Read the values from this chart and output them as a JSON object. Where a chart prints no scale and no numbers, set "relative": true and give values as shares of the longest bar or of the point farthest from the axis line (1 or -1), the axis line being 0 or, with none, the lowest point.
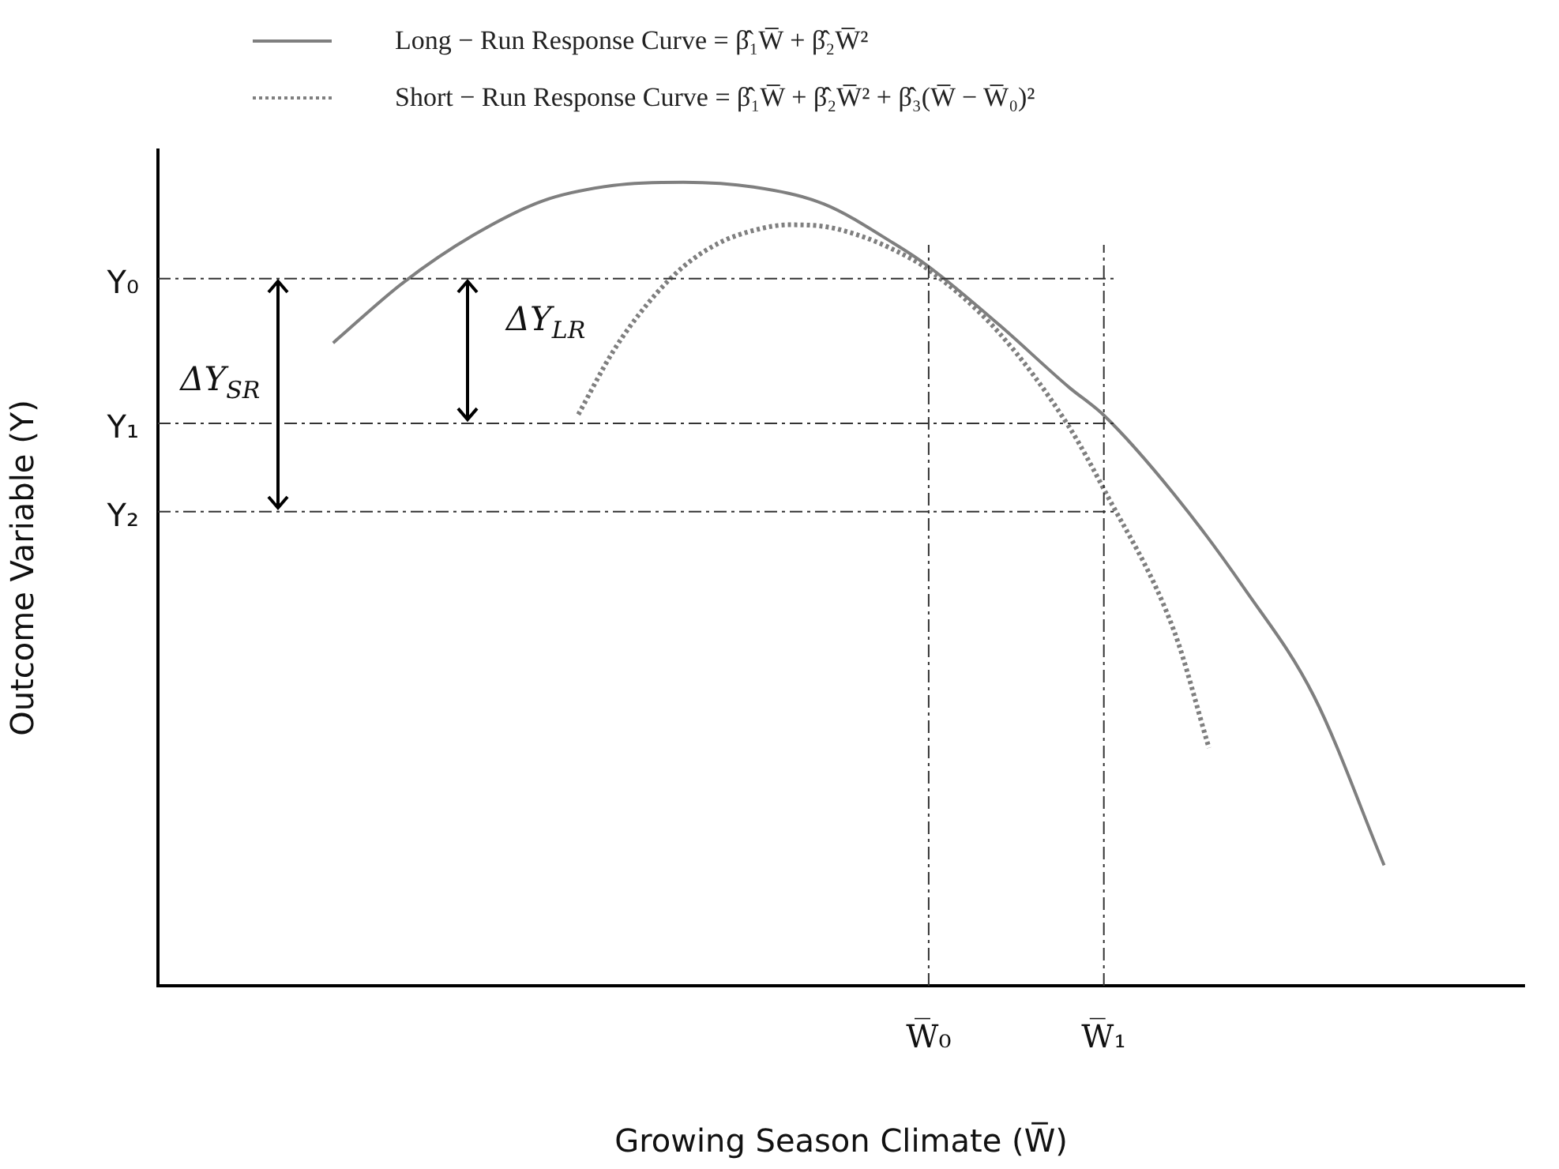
{
  "chart_data": {
    "type": "line",
    "relative": true,
    "xlabel": "Growing Season Climate (W̅)",
    "ylabel": "Outcome Variable (Y)",
    "categories": [
      null,
      null,
      null,
      null,
      null,
      null,
      null,
      null,
      null,
      null,
      null,
      null,
      null,
      null,
      null,
      null,
      null,
      null,
      null,
      null,
      null,
      null,
      "W̅₀",
      null,
      null,
      null,
      null,
      "W̅₁",
      null,
      null,
      null,
      null,
      null,
      null,
      null,
      null,
      null,
      null,
      null,
      null
    ],
    "series": [
      {
        "name": "Long − Run Response Curve = β̂₁W̅ + β̂₂W̅²",
        "color": "#7f7f7f",
        "line_style": "solid",
        "values": [
          null,
          null,
          null,
          null,
          null,
          0.8,
          null,
          0.875,
          null,
          0.934,
          null,
          0.977,
          null,
          0.996,
          null,
          1.0,
          null,
          0.994,
          null,
          0.973,
          null,
          0.924,
          0.895,
          null,
          0.823,
          null,
          0.745,
          0.71,
          null,
          0.612,
          null,
          0.495,
          null,
          0.36,
          null,
          0.15,
          null,
          null,
          null,
          null
        ]
      },
      {
        "name": "Short − Run Response Curve = β̂₁W̅ + β̂₂W̅² + β̂₃(W̅ − W̅₀)²",
        "color": "#7f7f7f",
        "line_style": "dotted",
        "values": [
          null,
          null,
          null,
          null,
          null,
          null,
          null,
          null,
          null,
          null,
          null,
          null,
          0.711,
          0.79,
          0.85,
          0.895,
          0.924,
          0.94,
          0.947,
          0.945,
          0.934,
          0.916,
          0.891,
          null,
          0.813,
          null,
          0.696,
          0.618,
          null,
          0.442,
          0.296,
          null,
          null,
          null,
          null,
          null,
          null,
          null,
          null,
          null
        ]
      }
    ],
    "ref_lines": [
      {
        "axis": "y",
        "value": 0.88,
        "label": "Y₀"
      },
      {
        "axis": "y",
        "value": 0.7,
        "label": "Y₁"
      },
      {
        "axis": "y",
        "value": 0.59,
        "label": "Y₂"
      },
      {
        "axis": "x",
        "value": "W̅₀"
      },
      {
        "axis": "x",
        "value": "W̅₁"
      }
    ],
    "annotations": [
      "ΔY$_{SR}$",
      "ΔY$_{LR}$"
    ],
    "marker": "none",
    "legend": "top",
    "grid": false
  }
}
